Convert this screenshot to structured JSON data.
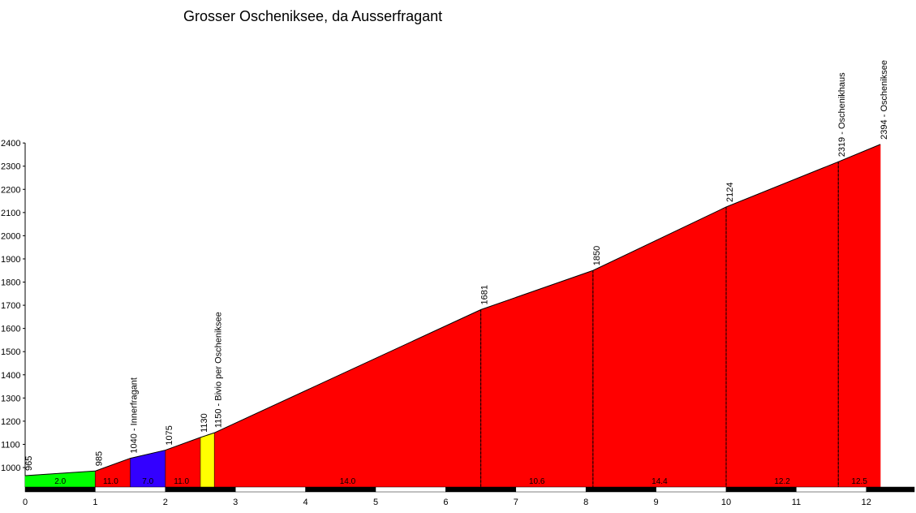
{
  "chart_data": {
    "type": "area",
    "title": "Grosser Oscheniksee, da Ausserfragant",
    "xlabel": "",
    "ylabel": "",
    "xlim": [
      0,
      12.6
    ],
    "ylim": [
      915,
      2400
    ],
    "x_ticks": [
      0,
      1,
      2,
      3,
      4,
      5,
      6,
      7,
      8,
      9,
      10,
      11,
      12
    ],
    "y_ticks": [
      1000,
      1100,
      1200,
      1300,
      1400,
      1500,
      1600,
      1700,
      1800,
      1900,
      2000,
      2100,
      2200,
      2300,
      2400
    ],
    "grid": false,
    "segments": [
      {
        "x_start": 0.0,
        "x_end": 1.0,
        "y_start": 965,
        "y_end": 985,
        "color": "#00ff00"
      },
      {
        "x_start": 1.0,
        "x_end": 1.5,
        "y_start": 985,
        "y_end": 1040,
        "color": "#ff0000"
      },
      {
        "x_start": 1.5,
        "x_end": 2.0,
        "y_start": 1040,
        "y_end": 1075,
        "color": "#3300ff"
      },
      {
        "x_start": 2.0,
        "x_end": 2.5,
        "y_start": 1075,
        "y_end": 1130,
        "color": "#ff0000"
      },
      {
        "x_start": 2.5,
        "x_end": 2.7,
        "y_start": 1130,
        "y_end": 1150,
        "color": "#ffff00"
      },
      {
        "x_start": 2.7,
        "x_end": 6.5,
        "y_start": 1150,
        "y_end": 1681,
        "color": "#ff0000"
      },
      {
        "x_start": 6.5,
        "x_end": 8.1,
        "y_start": 1681,
        "y_end": 1850,
        "color": "#ff0000"
      },
      {
        "x_start": 8.1,
        "x_end": 10.0,
        "y_start": 1850,
        "y_end": 2124,
        "color": "#ff0000"
      },
      {
        "x_start": 10.0,
        "x_end": 11.6,
        "y_start": 2124,
        "y_end": 2319,
        "color": "#ff0000"
      },
      {
        "x_start": 11.6,
        "x_end": 12.2,
        "y_start": 2319,
        "y_end": 2394,
        "color": "#ff0000"
      }
    ],
    "point_labels": [
      {
        "x": 0.0,
        "y": 965,
        "label": "965",
        "dashed": false
      },
      {
        "x": 1.0,
        "y": 985,
        "label": "985",
        "dashed": false
      },
      {
        "x": 1.5,
        "y": 1040,
        "label": "1040 - Innerfragant",
        "dashed": false
      },
      {
        "x": 2.0,
        "y": 1075,
        "label": "1075",
        "dashed": false
      },
      {
        "x": 2.5,
        "y": 1130,
        "label": "1130",
        "dashed": false
      },
      {
        "x": 2.7,
        "y": 1150,
        "label": "1150 - Bivio per Oscheniksee",
        "dashed": false
      },
      {
        "x": 6.5,
        "y": 1681,
        "label": "1681",
        "dashed": true
      },
      {
        "x": 8.1,
        "y": 1850,
        "label": "1850",
        "dashed": true
      },
      {
        "x": 10.0,
        "y": 2124,
        "label": "2124",
        "dashed": true
      },
      {
        "x": 11.6,
        "y": 2319,
        "label": "2319 - Oschenikhaus",
        "dashed": true
      },
      {
        "x": 12.2,
        "y": 2394,
        "label": "2394 - Oscheniksee",
        "dashed": false
      }
    ],
    "gradient_labels": [
      {
        "x": 0.5,
        "label": "2.0"
      },
      {
        "x": 1.22,
        "label": "11.0"
      },
      {
        "x": 1.75,
        "label": "7.0"
      },
      {
        "x": 2.23,
        "label": "11.0"
      },
      {
        "x": 4.6,
        "label": "14.0"
      },
      {
        "x": 7.3,
        "label": "10.6"
      },
      {
        "x": 9.05,
        "label": "14.4"
      },
      {
        "x": 10.8,
        "label": "12.2"
      },
      {
        "x": 11.9,
        "label": "12.5"
      }
    ],
    "colors": {
      "easy": "#00ff00",
      "moderate": "#ffff00",
      "hard": "#ff0000",
      "descent_or_flat": "#3300ff"
    }
  }
}
